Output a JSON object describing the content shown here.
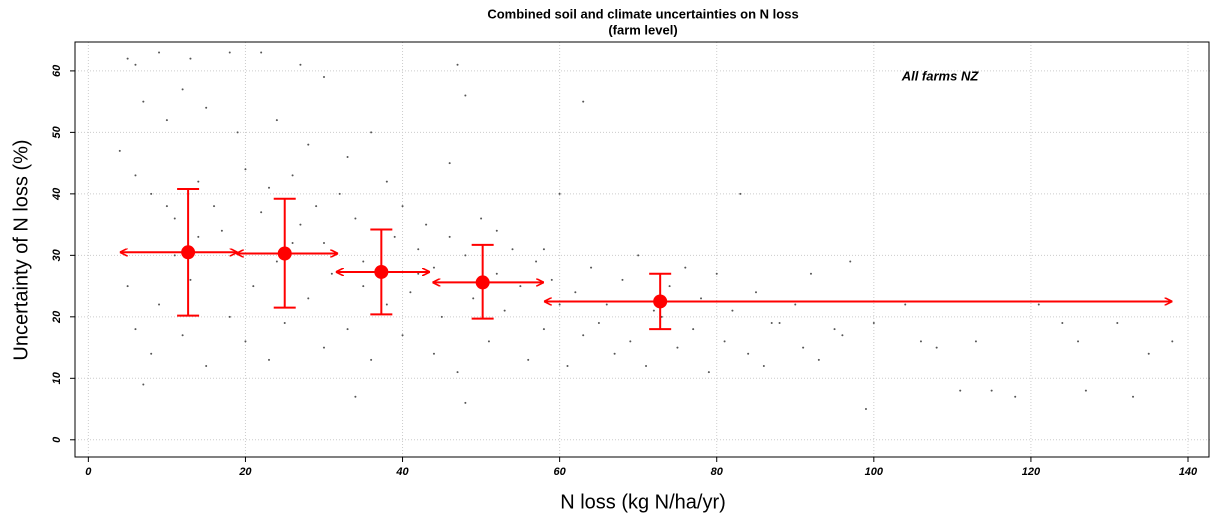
{
  "chart_data": {
    "type": "scatter",
    "title": "Combined soil and climate uncertainties on N loss",
    "subtitle": "(farm level)",
    "annotation": "All farms NZ",
    "xlabel": "N loss (kg N/ha/yr)",
    "ylabel": "Uncertainty of N loss (%)",
    "xlim": [
      -1.7,
      142.8
    ],
    "ylim": [
      -2.8,
      64.7
    ],
    "xticks": [
      0,
      20,
      40,
      60,
      80,
      100,
      120,
      140
    ],
    "yticks": [
      0,
      10,
      20,
      30,
      40,
      50,
      60
    ],
    "grid": true,
    "points": {
      "color": "#555555",
      "x": [
        5,
        6,
        9,
        13,
        18,
        22,
        27,
        30,
        47,
        48,
        63,
        7,
        10,
        12,
        15,
        19,
        24,
        28,
        36,
        33,
        46,
        4,
        6,
        8,
        10,
        11,
        14,
        16,
        17,
        20,
        22,
        23,
        26,
        27,
        29,
        30,
        32,
        34,
        35,
        38,
        39,
        40,
        42,
        43,
        44,
        46,
        48,
        50,
        52,
        54,
        55,
        57,
        59,
        60,
        62,
        64,
        66,
        68,
        70,
        72,
        74,
        76,
        78,
        80,
        82,
        83,
        85,
        87,
        90,
        92,
        95,
        97,
        5,
        6,
        8,
        9,
        12,
        13,
        15,
        18,
        20,
        21,
        23,
        25,
        28,
        30,
        31,
        33,
        36,
        38,
        40,
        41,
        44,
        45,
        47,
        49,
        51,
        53,
        56,
        58,
        60,
        61,
        63,
        65,
        67,
        69,
        71,
        73,
        75,
        77,
        79,
        81,
        84,
        86,
        88,
        91,
        93,
        96,
        99,
        100,
        104,
        106,
        108,
        111,
        113,
        115,
        118,
        121,
        124,
        126,
        127,
        131,
        133,
        135,
        138,
        7,
        11,
        14,
        24,
        26,
        35,
        42,
        52,
        58,
        34,
        48
      ],
      "y": [
        62,
        61,
        63,
        62,
        63,
        63,
        61,
        59,
        61,
        56,
        55,
        55,
        52,
        57,
        54,
        50,
        52,
        48,
        50,
        46,
        45,
        47,
        43,
        40,
        38,
        36,
        42,
        38,
        34,
        44,
        37,
        41,
        43,
        35,
        38,
        32,
        40,
        36,
        29,
        42,
        33,
        38,
        31,
        35,
        28,
        33,
        30,
        36,
        27,
        31,
        25,
        29,
        26,
        40,
        24,
        28,
        22,
        26,
        30,
        21,
        25,
        28,
        23,
        27,
        21,
        40,
        24,
        19,
        22,
        27,
        18,
        29,
        25,
        18,
        14,
        22,
        17,
        26,
        12,
        20,
        16,
        25,
        13,
        19,
        23,
        15,
        27,
        18,
        13,
        22,
        17,
        24,
        14,
        20,
        11,
        23,
        16,
        21,
        13,
        18,
        22,
        12,
        17,
        19,
        14,
        16,
        12,
        20,
        15,
        18,
        11,
        16,
        14,
        12,
        19,
        15,
        13,
        17,
        5,
        19,
        22,
        16,
        15,
        8,
        16,
        8,
        7,
        22,
        19,
        16,
        8,
        19,
        7,
        14,
        16,
        9,
        30,
        33,
        29,
        32,
        25,
        27,
        34,
        31,
        7,
        6
      ]
    },
    "summary": {
      "color": "#ff0000",
      "x": [
        12.7,
        25,
        37.3,
        50.2,
        72.8
      ],
      "y": [
        30.5,
        30.3,
        27.3,
        25.6,
        22.5
      ],
      "y_low": [
        20.2,
        21.5,
        20.4,
        19.7,
        18
      ],
      "y_high": [
        40.8,
        39.2,
        34.2,
        31.7,
        27
      ],
      "x_low": [
        4,
        18.8,
        31.5,
        43.8,
        58
      ],
      "x_high": [
        19,
        31.8,
        43.5,
        58,
        138
      ]
    }
  }
}
